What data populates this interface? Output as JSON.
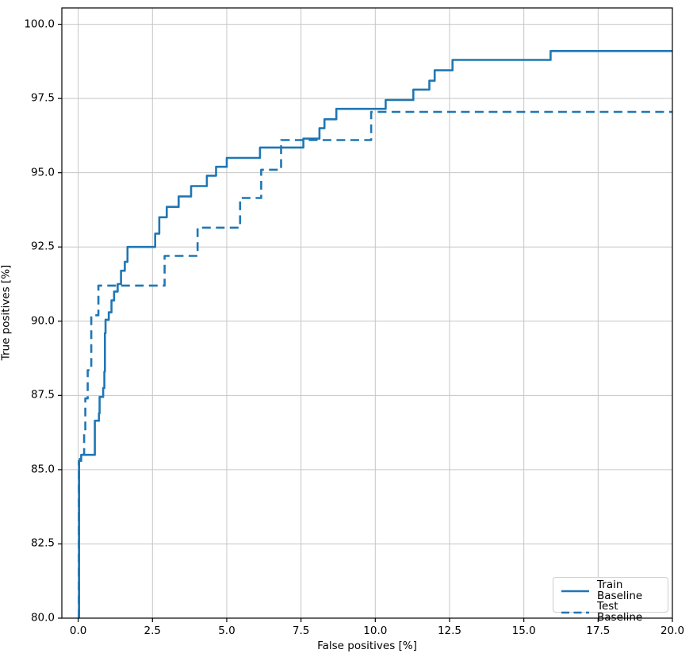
{
  "chart_data": {
    "type": "line",
    "subtype": "step-post",
    "title": "",
    "xlabel": "False positives [%]",
    "ylabel": "True positives [%]",
    "xlim": [
      -0.55,
      20.0
    ],
    "ylim": [
      80.0,
      100.55
    ],
    "xticks": [
      0.0,
      2.5,
      5.0,
      7.5,
      10.0,
      12.5,
      15.0,
      17.5,
      20.0
    ],
    "yticks": [
      80.0,
      82.5,
      85.0,
      87.5,
      90.0,
      92.5,
      95.0,
      97.5,
      100.0
    ],
    "xtick_labels": [
      "0.0",
      "2.5",
      "5.0",
      "7.5",
      "10.0",
      "12.5",
      "15.0",
      "17.5",
      "20.0"
    ],
    "ytick_labels": [
      "80.0",
      "82.5",
      "85.0",
      "87.5",
      "90.0",
      "92.5",
      "95.0",
      "97.5",
      "100.0"
    ],
    "grid": true,
    "grid_color": "#c6c6c6",
    "line_color": "#1f77b4",
    "legend_position": "lower right",
    "series": [
      {
        "name": "Train Baseline",
        "style": "solid",
        "step_points": [
          [
            0.03,
            80.0
          ],
          [
            0.03,
            85.3
          ],
          [
            0.1,
            85.5
          ],
          [
            0.56,
            86.65
          ],
          [
            0.7,
            86.9
          ],
          [
            0.72,
            87.45
          ],
          [
            0.84,
            87.75
          ],
          [
            0.88,
            88.3
          ],
          [
            0.9,
            89.6
          ],
          [
            0.92,
            90.05
          ],
          [
            1.03,
            90.3
          ],
          [
            1.12,
            90.7
          ],
          [
            1.21,
            91.0
          ],
          [
            1.33,
            91.25
          ],
          [
            1.44,
            91.7
          ],
          [
            1.57,
            92.0
          ],
          [
            1.66,
            92.5
          ],
          [
            2.59,
            92.95
          ],
          [
            2.73,
            93.5
          ],
          [
            2.98,
            93.85
          ],
          [
            3.38,
            94.2
          ],
          [
            3.8,
            94.55
          ],
          [
            4.33,
            94.9
          ],
          [
            4.64,
            95.2
          ],
          [
            5.0,
            95.5
          ],
          [
            6.12,
            95.85
          ],
          [
            7.58,
            96.15
          ],
          [
            8.12,
            96.5
          ],
          [
            8.29,
            96.8
          ],
          [
            8.69,
            97.15
          ],
          [
            10.35,
            97.45
          ],
          [
            11.28,
            97.8
          ],
          [
            11.82,
            98.1
          ],
          [
            12.0,
            98.45
          ],
          [
            12.6,
            98.8
          ],
          [
            15.9,
            99.1
          ],
          [
            20.0,
            99.1
          ]
        ]
      },
      {
        "name": "Test Baseline",
        "style": "dashed",
        "step_points": [
          [
            0.02,
            80.0
          ],
          [
            0.02,
            85.3
          ],
          [
            0.06,
            85.5
          ],
          [
            0.2,
            86.3
          ],
          [
            0.24,
            87.4
          ],
          [
            0.32,
            88.35
          ],
          [
            0.44,
            90.2
          ],
          [
            0.68,
            91.2
          ],
          [
            2.91,
            92.2
          ],
          [
            4.02,
            93.15
          ],
          [
            5.45,
            94.15
          ],
          [
            6.16,
            95.1
          ],
          [
            6.83,
            96.1
          ],
          [
            9.86,
            97.05
          ],
          [
            20.0,
            97.05
          ]
        ]
      }
    ]
  }
}
